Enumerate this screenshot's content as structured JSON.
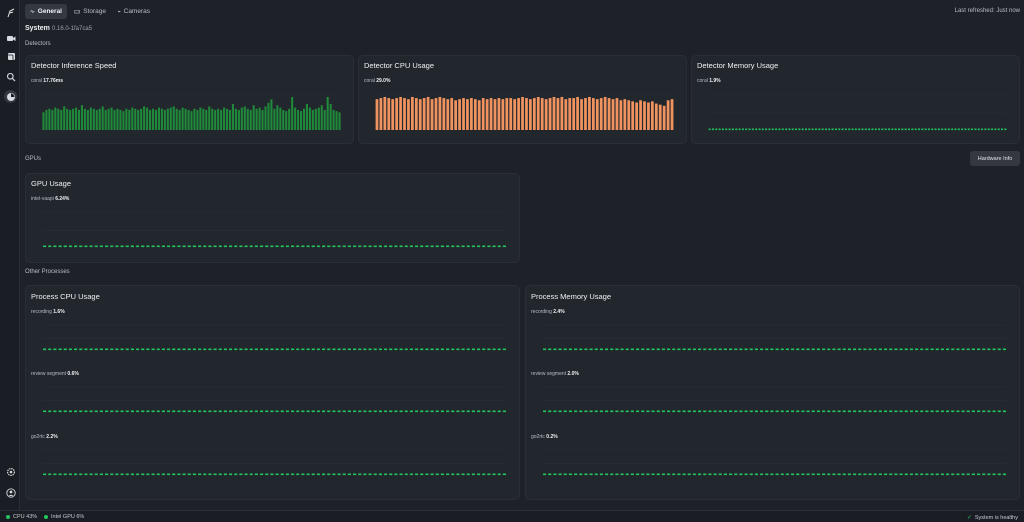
{
  "tabs": [
    {
      "label": "General",
      "icon": "activity-icon"
    },
    {
      "label": "Storage",
      "icon": "storage-icon"
    },
    {
      "label": "Cameras",
      "icon": "camera-icon"
    }
  ],
  "last_refreshed": "Last refreshed: Just now",
  "system": {
    "title": "System",
    "version": "0.16.0-1fa7ca5"
  },
  "sections": {
    "detectors": "Detectors",
    "gpus": "GPUs",
    "other": "Other Processes"
  },
  "hardware_info_label": "Hardware Info",
  "cards": {
    "inference": {
      "title": "Detector Inference Speed",
      "series": "coral",
      "value": "17.76ms"
    },
    "cpu": {
      "title": "Detector CPU Usage",
      "series": "coral",
      "value": "29.0%"
    },
    "memory": {
      "title": "Detector Memory Usage",
      "series": "coral",
      "value": "1.9%"
    },
    "gpu": {
      "title": "GPU Usage",
      "series": "intel-vaapi",
      "value": "6.24%"
    },
    "proc_cpu": {
      "title": "Process CPU Usage",
      "rows": [
        {
          "series": "recording",
          "value": "1.6%"
        },
        {
          "series": "review segment",
          "value": "0.6%"
        },
        {
          "series": "go2rtc",
          "value": "2.2%"
        }
      ]
    },
    "proc_mem": {
      "title": "Process Memory Usage",
      "rows": [
        {
          "series": "recording",
          "value": "2.4%"
        },
        {
          "series": "review segment",
          "value": "2.0%"
        },
        {
          "series": "go2rtc",
          "value": "0.2%"
        }
      ]
    }
  },
  "statusbar": {
    "cpu": "CPU 43%",
    "gpu": "Intel GPU 6%",
    "health": "System is healthy"
  },
  "colors": {
    "green": "#22c55e",
    "bar_green": "#1f8a3a",
    "orange": "#f0935e",
    "bg": "#1e2128"
  },
  "chart_data": [
    {
      "type": "bar",
      "name": "inference_speed",
      "color": "#1f8a3a",
      "values": [
        15,
        17,
        18,
        17,
        19,
        18,
        17,
        20,
        18,
        17,
        18,
        19,
        17,
        21,
        18,
        17,
        19,
        18,
        17,
        18,
        20,
        17,
        18,
        19,
        17,
        18,
        17,
        16,
        18,
        17,
        19,
        18,
        17,
        18,
        20,
        19,
        17,
        18,
        17,
        19,
        18,
        17,
        18,
        19,
        20,
        18,
        17,
        19,
        18,
        17,
        16,
        18,
        17,
        19,
        18,
        17,
        20,
        18,
        17,
        18,
        17,
        19,
        18,
        17,
        22,
        18,
        17,
        19,
        20,
        18,
        17,
        21,
        18,
        19,
        17,
        20,
        23,
        26,
        18,
        21,
        19,
        17,
        16,
        18,
        28,
        19,
        17,
        16,
        18,
        22,
        19,
        17,
        18,
        19,
        21,
        17,
        28,
        22,
        17,
        16,
        15
      ]
    },
    {
      "type": "bar",
      "name": "detector_cpu",
      "color": "#f0935e",
      "values": [
        28,
        29,
        30,
        29,
        28,
        29,
        30,
        29,
        28,
        30,
        29,
        28,
        29,
        30,
        28,
        29,
        30,
        29,
        28,
        29,
        27,
        28,
        29,
        28,
        29,
        28,
        27,
        29,
        28,
        29,
        28,
        29,
        28,
        29,
        29,
        28,
        29,
        30,
        29,
        28,
        29,
        30,
        29,
        28,
        29,
        30,
        29,
        30,
        28,
        29,
        29,
        30,
        28,
        29,
        30,
        29,
        28,
        29,
        30,
        29,
        28,
        29,
        27,
        28,
        27,
        26,
        25,
        27,
        26,
        25,
        26,
        24,
        23,
        22,
        27,
        28
      ]
    },
    {
      "type": "line",
      "name": "detector_memory",
      "color": "#22c55e",
      "values_constant": 1.9
    },
    {
      "type": "line",
      "name": "gpu_usage",
      "color": "#22c55e",
      "values_constant": 6.24
    },
    {
      "type": "line",
      "name": "recording_cpu",
      "color": "#22c55e",
      "values_constant": 1.6
    },
    {
      "type": "line",
      "name": "review_segment_cpu",
      "color": "#22c55e",
      "values_constant": 0.6
    },
    {
      "type": "line",
      "name": "go2rtc_cpu",
      "color": "#22c55e",
      "values_constant": 2.2
    },
    {
      "type": "line",
      "name": "recording_mem",
      "color": "#22c55e",
      "values_constant": 2.4
    },
    {
      "type": "line",
      "name": "review_segment_mem",
      "color": "#22c55e",
      "values_constant": 2.0
    },
    {
      "type": "line",
      "name": "go2rtc_mem",
      "color": "#22c55e",
      "values_constant": 0.2
    }
  ]
}
